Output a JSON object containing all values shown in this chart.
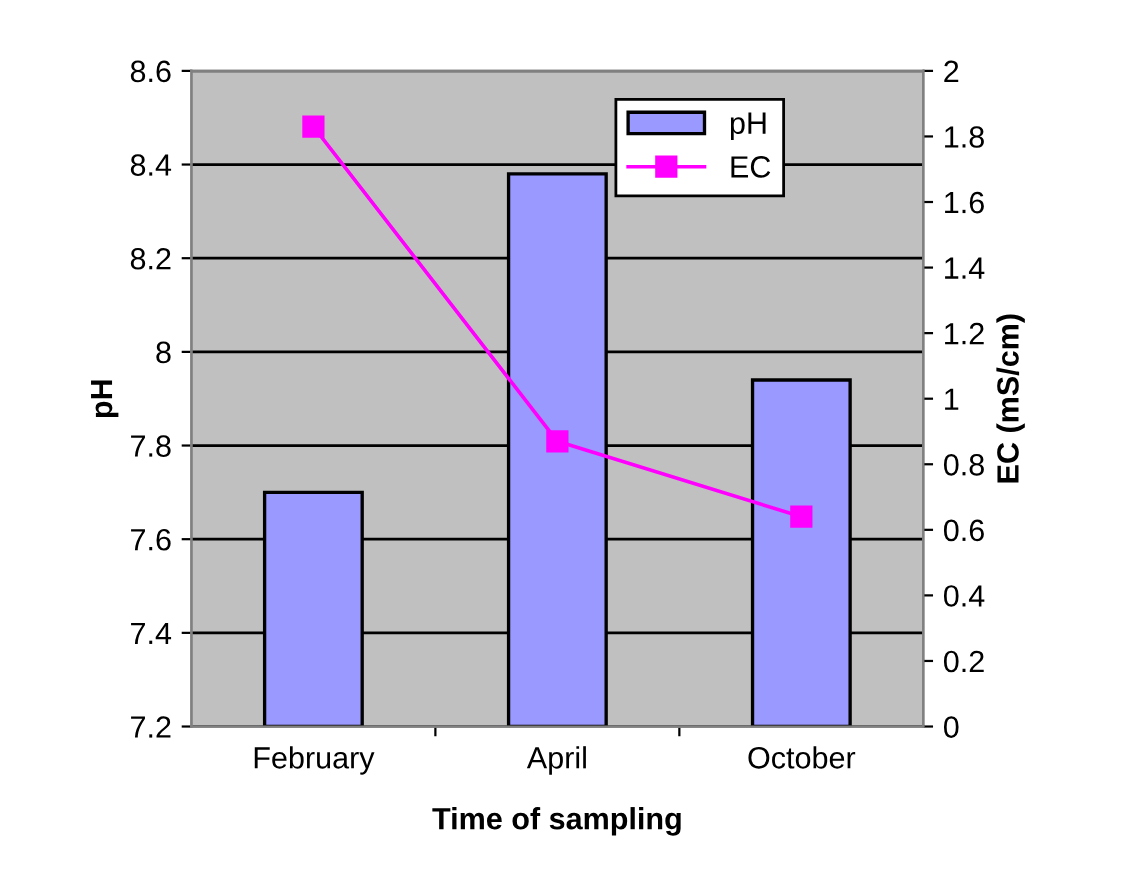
{
  "chart_data": {
    "type": "bar",
    "categories": [
      "February",
      "April",
      "October"
    ],
    "xlabel": "Time of sampling",
    "ylabel": "pH",
    "y2label": "EC (mS/cm)",
    "series": [
      {
        "name": "pH",
        "color": "#9999ff",
        "values": [
          7.7,
          8.38,
          7.94
        ]
      },
      {
        "name": "EC",
        "type": "line",
        "axis": "y2",
        "color": "#ff00ff",
        "marker": "square",
        "values": [
          1.83,
          0.87,
          0.64
        ]
      }
    ],
    "ylim": [
      7.2,
      8.6
    ],
    "yticks": [
      7.2,
      7.4,
      7.6,
      7.8,
      8,
      8.2,
      8.4,
      8.6
    ],
    "y2lim": [
      0,
      2
    ],
    "y2ticks": [
      0,
      0.2,
      0.4,
      0.6,
      0.8,
      1,
      1.2,
      1.4,
      1.6,
      1.8,
      2
    ],
    "grid": "y",
    "legend": "top right"
  }
}
